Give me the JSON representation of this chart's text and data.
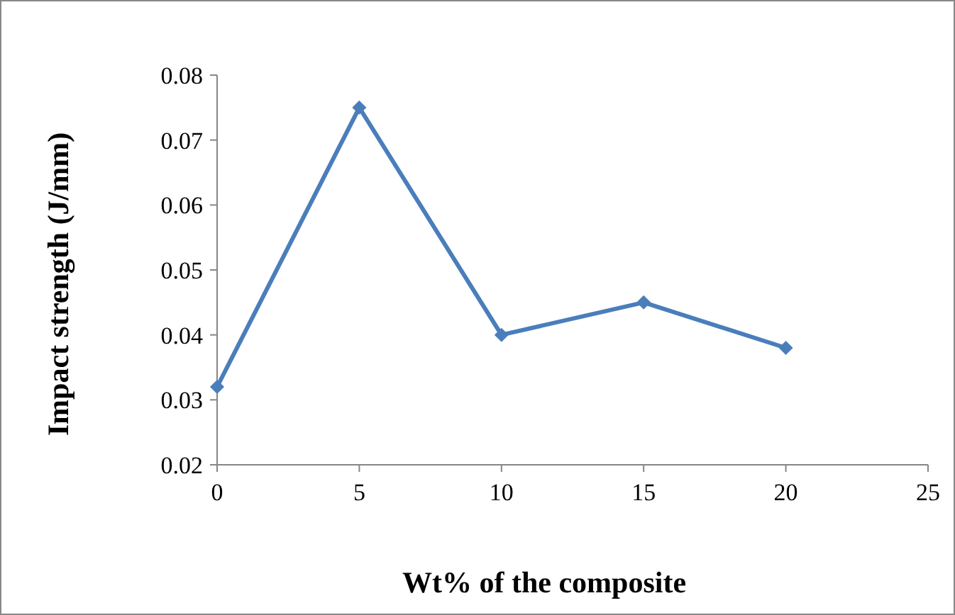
{
  "chart_data": {
    "type": "line",
    "xlabel": "Wt% of the composite",
    "ylabel": "Impact strength (J/mm)",
    "x": [
      0,
      5,
      10,
      15,
      20
    ],
    "series": [
      {
        "color": "#4a7ebb",
        "values": [
          0.032,
          0.075,
          0.04,
          0.045,
          0.038
        ]
      }
    ],
    "xlim": [
      0,
      25
    ],
    "xticks": [
      0,
      5,
      10,
      15,
      20,
      25
    ],
    "ylim": [
      0.02,
      0.08
    ],
    "yticks": [
      0.02,
      0.03,
      0.04,
      0.05,
      0.06,
      0.07,
      0.08
    ],
    "marker": "diamond",
    "line_style": "solid",
    "grid": false
  }
}
